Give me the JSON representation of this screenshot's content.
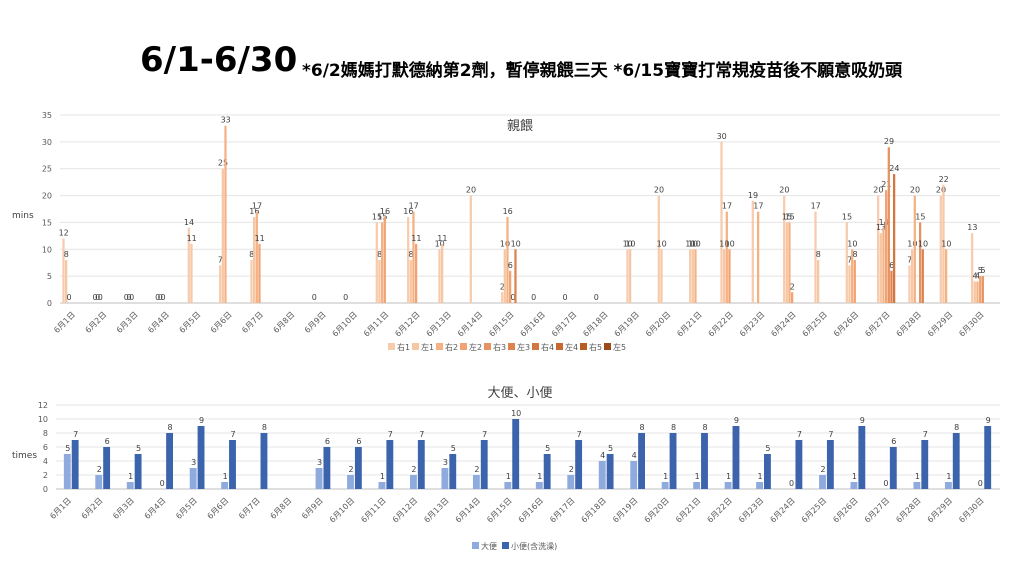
{
  "header": {
    "title": "6/1-6/30",
    "note": "*6/2媽媽打默德納第2劑，暫停親餵三天 *6/15寶寶打常規疫苗後不願意吸奶頭"
  },
  "colors": {
    "右1": "#f8cbad",
    "左1": "#f7c6a3",
    "右2": "#f4b183",
    "左2": "#f2a371",
    "右3": "#e69261",
    "左3": "#dd834f",
    "右4": "#d2773f",
    "左4": "#c8682e",
    "右5": "#b85d22",
    "左5": "#9c4b18",
    "大便": "#8faadc",
    "小便": "#3b64ad"
  },
  "chart_data": [
    {
      "type": "bar",
      "title": "親餵",
      "ylabel": "mins",
      "xlabel": "",
      "ylim": [
        0,
        35
      ],
      "yticks": [
        0,
        5,
        10,
        15,
        20,
        25,
        30,
        35
      ],
      "grid": true,
      "legend": "bottom",
      "categories": [
        "6月1日",
        "6月2日",
        "6月3日",
        "6月4日",
        "6月5日",
        "6月6日",
        "6月7日",
        "6月8日",
        "6月9日",
        "6月10日",
        "6月11日",
        "6月12日",
        "6月13日",
        "6月14日",
        "6月15日",
        "6月16日",
        "6月17日",
        "6月18日",
        "6月19日",
        "6月20日",
        "6月21日",
        "6月22日",
        "6月23日",
        "6月24日",
        "6月25日",
        "6月26日",
        "6月27日",
        "6月28日",
        "6月29日",
        "6月30日"
      ],
      "series": [
        {
          "name": "右1",
          "values": [
            12,
            0,
            0,
            0,
            14,
            7,
            8,
            null,
            0,
            0,
            15,
            16,
            10,
            20,
            2,
            0,
            0,
            0,
            10,
            20,
            10,
            30,
            19,
            20,
            17,
            15,
            20,
            7,
            20,
            13
          ]
        },
        {
          "name": "左1",
          "values": [
            8,
            0,
            0,
            0,
            11,
            25,
            16,
            null,
            null,
            null,
            8,
            8,
            11,
            null,
            10,
            null,
            null,
            null,
            10,
            10,
            10,
            10,
            null,
            15,
            8,
            7,
            13,
            10,
            22,
            4
          ]
        },
        {
          "name": "右2",
          "values": [
            0,
            0,
            0,
            0,
            null,
            33,
            17,
            null,
            null,
            null,
            15,
            17,
            null,
            null,
            16,
            null,
            null,
            null,
            null,
            null,
            10,
            17,
            17,
            15,
            null,
            10,
            14,
            20,
            10,
            4
          ]
        },
        {
          "name": "左2",
          "values": [
            null,
            null,
            null,
            null,
            null,
            null,
            11,
            null,
            null,
            null,
            16,
            11,
            null,
            null,
            6,
            null,
            null,
            null,
            null,
            null,
            null,
            10,
            null,
            2,
            null,
            8,
            21,
            null,
            null,
            5
          ]
        },
        {
          "name": "右3",
          "values": [
            null,
            null,
            null,
            null,
            null,
            null,
            null,
            null,
            null,
            null,
            null,
            null,
            null,
            null,
            0,
            null,
            null,
            null,
            null,
            null,
            null,
            null,
            null,
            null,
            null,
            null,
            29,
            15,
            null,
            5
          ]
        },
        {
          "name": "左3",
          "values": [
            null,
            null,
            null,
            null,
            null,
            null,
            null,
            null,
            null,
            null,
            null,
            null,
            null,
            null,
            10,
            null,
            null,
            null,
            null,
            null,
            null,
            null,
            null,
            null,
            null,
            null,
            6,
            10,
            null,
            null
          ]
        },
        {
          "name": "右4",
          "values": [
            null,
            null,
            null,
            null,
            null,
            null,
            null,
            null,
            null,
            null,
            null,
            null,
            null,
            null,
            null,
            null,
            null,
            null,
            null,
            null,
            null,
            null,
            null,
            null,
            null,
            null,
            24,
            null,
            null,
            null
          ]
        },
        {
          "name": "左4",
          "values": [
            null,
            null,
            null,
            null,
            null,
            null,
            null,
            null,
            null,
            null,
            null,
            null,
            null,
            null,
            null,
            null,
            null,
            null,
            null,
            null,
            null,
            null,
            null,
            null,
            null,
            null,
            null,
            null,
            null,
            null
          ]
        },
        {
          "name": "右5",
          "values": [
            null,
            null,
            null,
            null,
            null,
            null,
            null,
            null,
            null,
            null,
            null,
            null,
            null,
            null,
            null,
            null,
            null,
            null,
            null,
            null,
            null,
            null,
            null,
            null,
            null,
            null,
            null,
            null,
            null,
            null
          ]
        },
        {
          "name": "左5",
          "values": [
            null,
            null,
            null,
            null,
            null,
            null,
            null,
            null,
            null,
            null,
            null,
            null,
            null,
            null,
            null,
            null,
            null,
            null,
            null,
            null,
            null,
            null,
            null,
            null,
            null,
            null,
            null,
            null,
            null,
            null
          ]
        }
      ]
    },
    {
      "type": "bar",
      "title": "大便、小便",
      "ylabel": "times",
      "xlabel": "",
      "ylim": [
        0,
        12
      ],
      "yticks": [
        0,
        2,
        4,
        6,
        8,
        10,
        12
      ],
      "grid": true,
      "legend": "bottom",
      "categories": [
        "6月1日",
        "6月2日",
        "6月3日",
        "6月4日",
        "6月5日",
        "6月6日",
        "6月7日",
        "6月8日",
        "6月9日",
        "6月10日",
        "6月11日",
        "6月12日",
        "6月13日",
        "6月14日",
        "6月15日",
        "6月16日",
        "6月17日",
        "6月18日",
        "6月19日",
        "6月20日",
        "6月21日",
        "6月22日",
        "6月23日",
        "6月24日",
        "6月25日",
        "6月26日",
        "6月27日",
        "6月28日",
        "6月29日",
        "6月30日"
      ],
      "series": [
        {
          "name": "大便",
          "values": [
            5,
            2,
            1,
            0,
            3,
            1,
            null,
            null,
            3,
            2,
            1,
            2,
            3,
            2,
            1,
            1,
            2,
            4,
            4,
            1,
            1,
            1,
            1,
            0,
            2,
            1,
            0,
            1,
            1,
            0
          ]
        },
        {
          "name": "小便(含洗澡)",
          "values": [
            7,
            6,
            5,
            8,
            9,
            7,
            8,
            null,
            6,
            6,
            7,
            7,
            5,
            7,
            10,
            5,
            7,
            5,
            8,
            8,
            8,
            9,
            5,
            7,
            7,
            9,
            6,
            7,
            8,
            9
          ]
        }
      ]
    }
  ]
}
